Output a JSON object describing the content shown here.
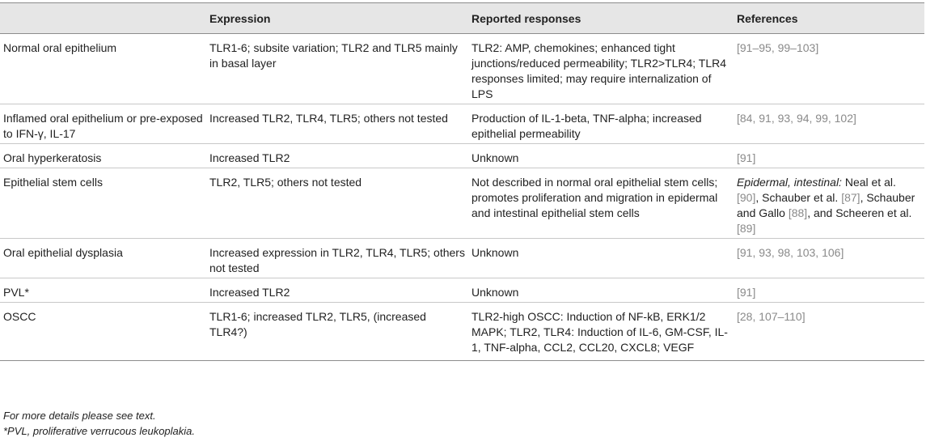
{
  "columns": [
    "",
    "Expression",
    "Reported responses",
    "References"
  ],
  "rows": [
    {
      "condition": "Normal oral epithelium",
      "expression": "TLR1-6; subsite variation; TLR2 and TLR5 mainly in basal layer",
      "responses": "TLR2: AMP, chemokines; enhanced tight junctions/reduced permeability; TLR2>TLR4; TLR4 responses limited; may require internalization of LPS",
      "refs": "[91–95, 99–103]"
    },
    {
      "condition": "Inflamed oral epithelium or pre-exposed to IFN-γ, IL-17",
      "expression": "Increased TLR2, TLR4, TLR5; others not tested",
      "responses": "Production of IL-1-beta, TNF-alpha; increased epithelial permeability",
      "refs": "[84, 91, 93, 94, 99, 102]"
    },
    {
      "condition": "Oral hyperkeratosis",
      "expression": "Increased TLR2",
      "responses": "Unknown",
      "refs": "[91]"
    },
    {
      "condition": "Epithelial stem cells",
      "expression": "TLR2, TLR5; others not tested",
      "responses": "Not described in normal oral epithelial stem cells; promotes proliferation and migration in epidermal and intestinal epithelial stem cells",
      "refs_prefix": "Epidermal, intestinal:",
      "refs_line1": " Neal et al. ",
      "refs_b1": "[90]",
      "refs_mid1": ", Schauber et al. ",
      "refs_b2": "[87]",
      "refs_mid2": ", Schauber and Gallo ",
      "refs_b3": "[88]",
      "refs_mid3": ", and Scheeren et al. ",
      "refs_b4": "[89]"
    },
    {
      "condition": "Oral epithelial dysplasia",
      "expression": "Increased expression in TLR2, TLR4, TLR5; others not tested",
      "responses": "Unknown",
      "refs": "[91, 93, 98, 103, 106]"
    },
    {
      "condition": "PVL*",
      "expression": "Increased TLR2",
      "responses": "Unknown",
      "refs": "[91]"
    },
    {
      "condition": "OSCC",
      "expression": "TLR1-6; increased TLR2, TLR5, (increased TLR4?)",
      "responses": "TLR2-high OSCC: Induction of NF-kB, ERK1/2 MAPK; TLR2, TLR4: Induction of IL-6, GM-CSF, IL-1, TNF-alpha, CCL2, CCL20, CXCL8; VEGF",
      "refs": "[28, 107–110]"
    }
  ],
  "footnotes": [
    "For more details please see text.",
    "*PVL, proliferative verrucous leukoplakia."
  ]
}
